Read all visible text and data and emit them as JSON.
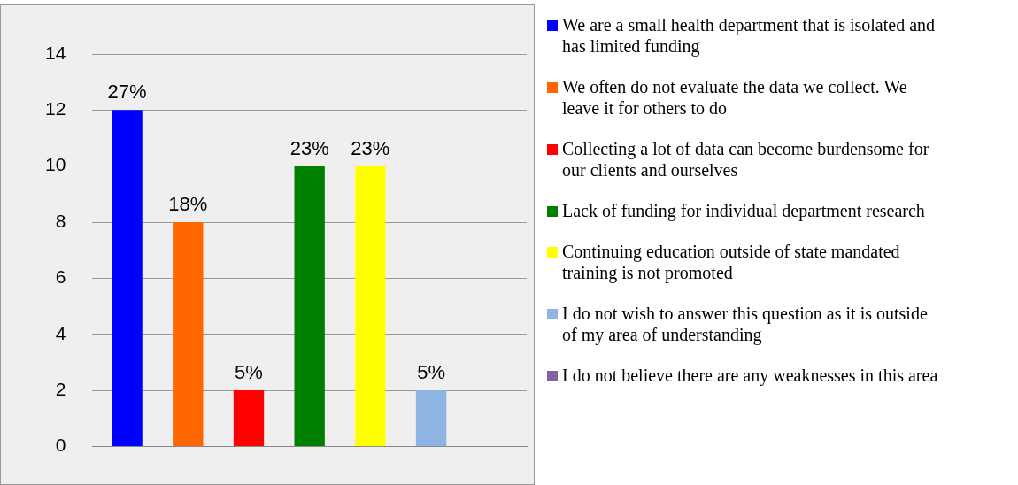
{
  "chart_data": {
    "type": "bar",
    "categories": [
      null
    ],
    "series": [
      {
        "name": "We are a small health department that is isolated and has limited funding",
        "color": "#0000ff",
        "values": [
          12
        ]
      },
      {
        "name": "We often do not evaluate the data we collect. We leave it for others to do",
        "color": "#ff6600",
        "values": [
          8
        ]
      },
      {
        "name": "Collecting a lot of data can become burdensome for our clients and ourselves",
        "color": "#ff0000",
        "values": [
          2
        ]
      },
      {
        "name": "Lack of funding for individual department research",
        "color": "#008000",
        "values": [
          10
        ]
      },
      {
        "name": "Continuing education outside of state mandated training is not promoted",
        "color": "#ffff00",
        "values": [
          10
        ]
      },
      {
        "name": "I do not wish to answer this question as it is outside of my area of understanding",
        "color": "#8db4e2",
        "values": [
          2
        ]
      },
      {
        "name": "I do not believe there are any weaknesses in this area",
        "color": "#8064a2",
        "values": [
          0
        ]
      }
    ],
    "annotations": [
      {
        "text": "27%",
        "y": 12
      },
      {
        "text": "18%",
        "y": 8
      },
      {
        "text": "5%",
        "y": 2
      },
      {
        "text": "23%",
        "y": 10
      },
      {
        "text": "23%",
        "y": 10
      },
      {
        "text": "5%",
        "y": 2
      }
    ],
    "ylim": [
      0,
      14
    ],
    "yticks": [
      0,
      2,
      4,
      6,
      8,
      10,
      12,
      14
    ],
    "grid": "y",
    "legend": "right",
    "tick_labels": "y"
  }
}
